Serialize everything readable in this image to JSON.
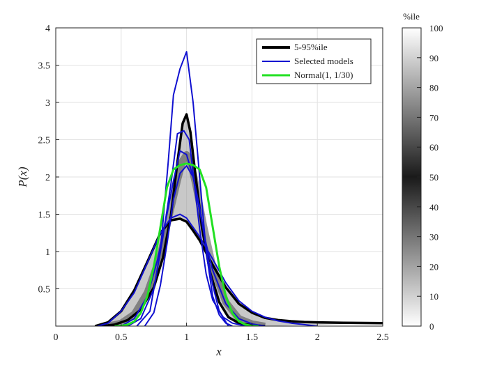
{
  "chart_data": {
    "type": "line",
    "title": "",
    "xlabel": "x",
    "ylabel": "P(x)",
    "xlim": [
      0,
      2.5
    ],
    "ylim": [
      0,
      4
    ],
    "x_ticks": [
      0,
      0.5,
      1,
      1.5,
      2,
      2.5
    ],
    "x_tick_labels": [
      "0",
      "0.5",
      "1",
      "1.5",
      "2",
      "2.5"
    ],
    "y_ticks": [
      0.5,
      1,
      1.5,
      2,
      2.5,
      3,
      3.5,
      4
    ],
    "y_tick_labels": [
      "0.5",
      "1",
      "1.5",
      "2",
      "2.5",
      "3",
      "3.5",
      "4"
    ],
    "grid": true,
    "legend_position": "top-right",
    "colors": {
      "percentile_lines": "#000000",
      "selected_models": "#1010d0",
      "normal": "#22e022",
      "band_dark": "#1a1a1a",
      "band_light": "#ffffff"
    },
    "legend": [
      {
        "label": "5-95%ile",
        "color": "#000000"
      },
      {
        "label": "Selected models",
        "color": "#1010d0"
      },
      {
        "label": "Normal(1, 1/30)",
        "color": "#22e022"
      }
    ],
    "colorbar": {
      "title": "%ile",
      "range": [
        0,
        100
      ],
      "ticks": [
        0,
        10,
        20,
        30,
        40,
        50,
        60,
        70,
        80,
        90,
        100
      ],
      "tick_labels": [
        "0",
        "10",
        "20",
        "30",
        "40",
        "50",
        "60",
        "70",
        "80",
        "90",
        "100"
      ],
      "dark_at": 50
    },
    "percentile_band": {
      "name": "5-95%ile",
      "upper": {
        "x": [
          0.35,
          0.45,
          0.55,
          0.65,
          0.75,
          0.82,
          0.88,
          0.93,
          0.97,
          1.0,
          1.03,
          1.07,
          1.12,
          1.18,
          1.25,
          1.32,
          1.4,
          1.5,
          1.6
        ],
        "y": [
          0.0,
          0.02,
          0.08,
          0.22,
          0.52,
          0.92,
          1.48,
          2.2,
          2.72,
          2.84,
          2.6,
          2.0,
          1.3,
          0.72,
          0.32,
          0.12,
          0.04,
          0.01,
          0.0
        ]
      },
      "lower": {
        "x": [
          0.3,
          0.4,
          0.5,
          0.6,
          0.7,
          0.8,
          0.88,
          0.95,
          1.0,
          1.05,
          1.1,
          1.2,
          1.3,
          1.4,
          1.5,
          1.6,
          1.7,
          1.8,
          1.9,
          2.0,
          2.2,
          2.5
        ],
        "y": [
          0.0,
          0.05,
          0.2,
          0.48,
          0.86,
          1.25,
          1.42,
          1.44,
          1.4,
          1.28,
          1.15,
          0.82,
          0.52,
          0.3,
          0.18,
          0.11,
          0.08,
          0.065,
          0.055,
          0.05,
          0.045,
          0.04
        ]
      },
      "median": {
        "x": [
          0.4,
          0.5,
          0.6,
          0.7,
          0.8,
          0.87,
          0.93,
          0.97,
          1.0,
          1.03,
          1.07,
          1.13,
          1.2,
          1.3,
          1.4,
          1.5,
          1.6
        ],
        "y": [
          0.0,
          0.04,
          0.16,
          0.45,
          0.95,
          1.5,
          1.95,
          2.22,
          2.3,
          2.2,
          1.9,
          1.35,
          0.8,
          0.32,
          0.1,
          0.03,
          0.0
        ]
      }
    },
    "series": [
      {
        "name": "Selected models",
        "x": [
          0.62,
          0.72,
          0.8,
          0.86,
          0.9,
          0.95,
          1.0,
          1.05,
          1.1,
          1.15,
          1.2,
          1.25,
          1.3,
          1.35
        ],
        "y": [
          0.0,
          0.2,
          1.0,
          2.2,
          3.1,
          3.45,
          3.68,
          3.0,
          2.0,
          1.0,
          0.4,
          0.15,
          0.04,
          0.0
        ]
      },
      {
        "name": "Selected models",
        "x": [
          0.55,
          0.65,
          0.75,
          0.82,
          0.88,
          0.93,
          0.98,
          1.02,
          1.06,
          1.1,
          1.15,
          1.2,
          1.28,
          1.35,
          1.45
        ],
        "y": [
          0.0,
          0.1,
          0.5,
          1.2,
          1.9,
          2.58,
          2.62,
          2.5,
          1.9,
          1.3,
          0.7,
          0.35,
          0.12,
          0.04,
          0.0
        ]
      },
      {
        "name": "Selected models",
        "x": [
          0.5,
          0.6,
          0.7,
          0.78,
          0.85,
          0.9,
          0.95,
          1.0,
          1.05,
          1.1,
          1.15,
          1.2,
          1.3,
          1.4,
          1.5,
          1.6
        ],
        "y": [
          0.0,
          0.1,
          0.4,
          0.9,
          1.5,
          1.95,
          2.35,
          2.3,
          2.0,
          1.55,
          1.1,
          0.75,
          0.3,
          0.1,
          0.03,
          0.0
        ]
      },
      {
        "name": "Selected models",
        "x": [
          0.32,
          0.4,
          0.5,
          0.6,
          0.7,
          0.8,
          0.88,
          0.95,
          1.0,
          1.1,
          1.2,
          1.3,
          1.4,
          1.5,
          1.6,
          1.7,
          1.8,
          1.9,
          2.0
        ],
        "y": [
          0.0,
          0.04,
          0.2,
          0.45,
          0.85,
          1.25,
          1.45,
          1.5,
          1.45,
          1.2,
          0.9,
          0.58,
          0.34,
          0.2,
          0.12,
          0.07,
          0.04,
          0.02,
          0.0
        ]
      },
      {
        "name": "Selected models",
        "x": [
          0.68,
          0.75,
          0.8,
          0.85,
          0.9,
          0.95,
          1.0,
          1.05,
          1.1,
          1.15,
          1.2,
          1.25,
          1.32
        ],
        "y": [
          0.0,
          0.18,
          0.55,
          1.1,
          1.7,
          2.05,
          2.15,
          2.0,
          1.6,
          1.05,
          0.55,
          0.2,
          0.0
        ]
      },
      {
        "name": "Normal(1, 1/30)",
        "x": [
          0.45,
          0.5,
          0.55,
          0.6,
          0.65,
          0.7,
          0.75,
          0.8,
          0.85,
          0.9,
          0.95,
          1.0,
          1.05,
          1.1,
          1.15,
          1.2,
          1.25,
          1.3,
          1.35,
          1.4,
          1.45,
          1.5,
          1.55
        ],
        "y": [
          0.0,
          0.004,
          0.02,
          0.064,
          0.175,
          0.4,
          0.8,
          1.33,
          1.86,
          2.1,
          2.16,
          2.18,
          2.16,
          2.1,
          1.86,
          1.33,
          0.8,
          0.4,
          0.175,
          0.064,
          0.02,
          0.004,
          0.0
        ]
      }
    ]
  }
}
